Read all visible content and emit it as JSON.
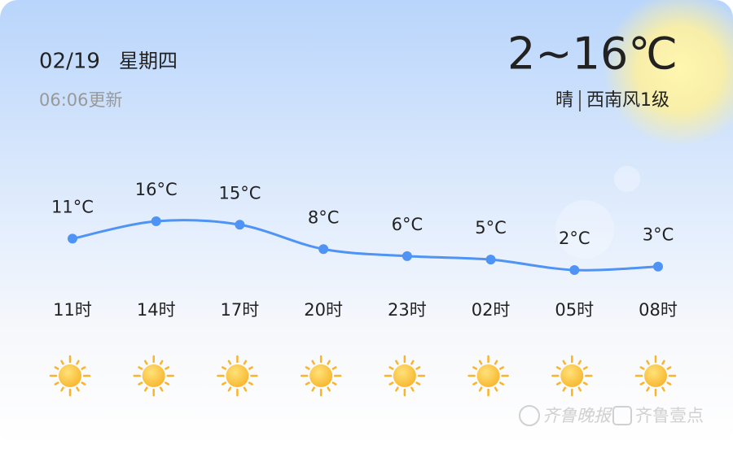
{
  "header": {
    "date": "02/19",
    "weekday": "星期四",
    "updated": "06:06更新",
    "temp_range": "2~16℃",
    "condition": "晴",
    "wind": "西南风1级"
  },
  "chart_data": {
    "type": "line",
    "categories": [
      "11时",
      "14时",
      "17时",
      "20时",
      "23时",
      "02时",
      "05时",
      "08时"
    ],
    "values": [
      11,
      16,
      15,
      8,
      6,
      5,
      2,
      3
    ],
    "value_labels": [
      "11°C",
      "16°C",
      "15°C",
      "8°C",
      "6°C",
      "5°C",
      "2°C",
      "3°C"
    ],
    "color": "#4f93f5"
  },
  "watermark": [
    "齐鲁晚报",
    "齐鲁壹点"
  ]
}
